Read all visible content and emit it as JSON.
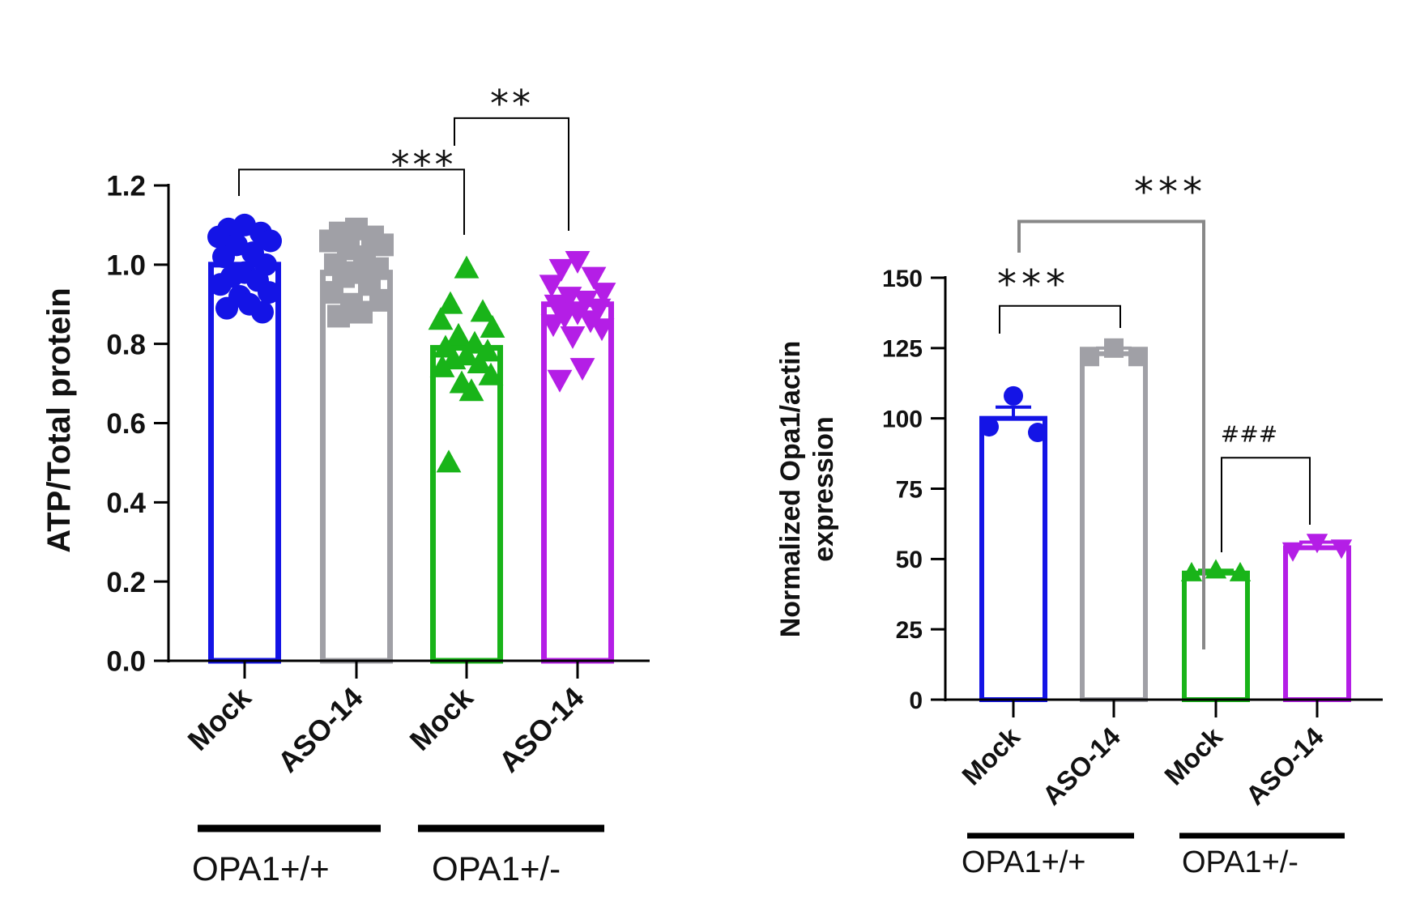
{
  "colors": {
    "mock_wt": "#1414e6",
    "aso_wt": "#a0a0a6",
    "mock_het": "#19b419",
    "aso_het": "#b41ee6",
    "axis": "#000000",
    "bracket_gray": "#888888"
  },
  "chart_data": [
    {
      "type": "bar",
      "title": "",
      "xlabel": "",
      "ylabel": "ATP/Total protein",
      "ylim": [
        0,
        1.2
      ],
      "yticks": [
        "0.0",
        "0.2",
        "0.4",
        "0.6",
        "0.8",
        "1.0",
        "1.2"
      ],
      "categories": [
        "Mock",
        "ASO-14",
        "Mock",
        "ASO-14"
      ],
      "groups": [
        {
          "label": "OPA1+/+",
          "categories": [
            0,
            1
          ]
        },
        {
          "label": "OPA1+/-",
          "categories": [
            2,
            3
          ]
        }
      ],
      "values": [
        1.0,
        0.98,
        0.79,
        0.9
      ],
      "markers": [
        "circle",
        "square",
        "triangle-up",
        "triangle-down"
      ],
      "points": [
        [
          1.1,
          1.09,
          1.08,
          1.07,
          1.06,
          1.05,
          1.03,
          1.02,
          1.0,
          0.98,
          0.97,
          0.96,
          0.95,
          0.93,
          0.92,
          0.9,
          0.89,
          0.88
        ],
        [
          1.09,
          1.08,
          1.07,
          1.06,
          1.05,
          1.04,
          1.02,
          1.0,
          0.99,
          0.98,
          0.97,
          0.95,
          0.93,
          0.91,
          0.9,
          0.88,
          0.87
        ],
        [
          0.99,
          0.9,
          0.88,
          0.86,
          0.84,
          0.82,
          0.8,
          0.79,
          0.78,
          0.77,
          0.76,
          0.75,
          0.74,
          0.72,
          0.7,
          0.68,
          0.5
        ],
        [
          1.01,
          0.99,
          0.97,
          0.95,
          0.93,
          0.92,
          0.91,
          0.9,
          0.89,
          0.88,
          0.87,
          0.86,
          0.85,
          0.84,
          0.82,
          0.74,
          0.71
        ]
      ],
      "significance": [
        {
          "from": 0,
          "to": 2,
          "label": "***",
          "level": 1.24
        },
        {
          "from": 2,
          "to": 3,
          "label": "**",
          "level": 1.37
        }
      ]
    },
    {
      "type": "bar",
      "title": "",
      "xlabel": "",
      "ylabel_lines": [
        "Normalized Opa1/actin",
        "expression"
      ],
      "ylim": [
        0,
        150
      ],
      "yticks": [
        "0",
        "25",
        "50",
        "75",
        "100",
        "125",
        "150"
      ],
      "categories": [
        "Mock",
        "ASO-14",
        "Mock",
        "ASO-14"
      ],
      "groups": [
        {
          "label": "OPA1+/+",
          "categories": [
            0,
            1
          ]
        },
        {
          "label": "OPA1+/-",
          "categories": [
            2,
            3
          ]
        }
      ],
      "values": [
        100,
        123,
        45,
        54
      ],
      "errors": [
        4,
        2,
        1,
        2
      ],
      "markers": [
        "circle",
        "square",
        "triangle-up",
        "triangle-down"
      ],
      "points": [
        [
          108,
          97,
          95
        ],
        [
          125,
          122,
          122
        ],
        [
          46,
          45,
          45
        ],
        [
          56,
          53,
          54
        ]
      ],
      "significance": [
        {
          "from": 0,
          "to": 1,
          "label": "***",
          "level": 140
        },
        {
          "from": 0,
          "to": 2,
          "label": "***",
          "level": 170,
          "color": "gray"
        },
        {
          "from": 2,
          "to": 3,
          "label": "###",
          "level": 86
        }
      ]
    }
  ]
}
